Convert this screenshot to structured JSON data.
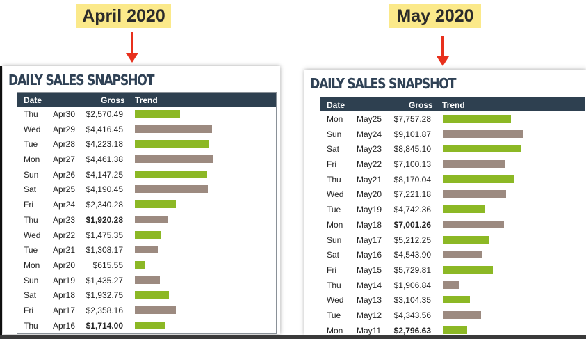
{
  "colors": {
    "green": "#8cb825",
    "taupe": "#9c8a80",
    "header": "#2e4050"
  },
  "april": {
    "badge": "April 2020",
    "title": "DAILY SALES SNAPSHOT",
    "headers": {
      "date": "Date",
      "gross": "Gross",
      "trend": "Trend"
    },
    "rows": [
      {
        "day": "Thu",
        "date": "Apr30",
        "gross": "$2,570.49",
        "trend": 2570.49,
        "color": "green",
        "bold": false
      },
      {
        "day": "Wed",
        "date": "Apr29",
        "gross": "$4,416.45",
        "trend": 4416.45,
        "color": "taupe",
        "bold": false
      },
      {
        "day": "Tue",
        "date": "Apr28",
        "gross": "$4,223.18",
        "trend": 4223.18,
        "color": "green",
        "bold": false
      },
      {
        "day": "Mon",
        "date": "Apr27",
        "gross": "$4,461.38",
        "trend": 4461.38,
        "color": "taupe",
        "bold": false
      },
      {
        "day": "Sun",
        "date": "Apr26",
        "gross": "$4,147.25",
        "trend": 4147.25,
        "color": "green",
        "bold": false
      },
      {
        "day": "Sat",
        "date": "Apr25",
        "gross": "$4,190.45",
        "trend": 4190.45,
        "color": "taupe",
        "bold": false
      },
      {
        "day": "Fri",
        "date": "Apr24",
        "gross": "$2,340.28",
        "trend": 2340.28,
        "color": "green",
        "bold": false
      },
      {
        "day": "Thu",
        "date": "Apr23",
        "gross": "$1,920.28",
        "trend": 1920.28,
        "color": "taupe",
        "bold": true
      },
      {
        "day": "Wed",
        "date": "Apr22",
        "gross": "$1,475.35",
        "trend": 1475.35,
        "color": "green",
        "bold": false
      },
      {
        "day": "Tue",
        "date": "Apr21",
        "gross": "$1,308.17",
        "trend": 1308.17,
        "color": "taupe",
        "bold": false
      },
      {
        "day": "Mon",
        "date": "Apr20",
        "gross": "$615.55",
        "trend": 615.55,
        "color": "green",
        "bold": false
      },
      {
        "day": "Sun",
        "date": "Apr19",
        "gross": "$1,435.27",
        "trend": 1435.27,
        "color": "taupe",
        "bold": false
      },
      {
        "day": "Sat",
        "date": "Apr18",
        "gross": "$1,932.75",
        "trend": 1932.75,
        "color": "green",
        "bold": false
      },
      {
        "day": "Fri",
        "date": "Apr17",
        "gross": "$2,358.16",
        "trend": 2358.16,
        "color": "taupe",
        "bold": false
      },
      {
        "day": "Thu",
        "date": "Apr16",
        "gross": "$1,714.00",
        "trend": 1714.0,
        "color": "green",
        "bold": true
      }
    ]
  },
  "may": {
    "badge": "May 2020",
    "title": "DAILY SALES SNAPSHOT",
    "headers": {
      "date": "Date",
      "gross": "Gross",
      "trend": "Trend"
    },
    "rows": [
      {
        "day": "Mon",
        "date": "May25",
        "gross": "$7,757.28",
        "trend": 7757.28,
        "color": "green",
        "bold": false
      },
      {
        "day": "Sun",
        "date": "May24",
        "gross": "$9,101.87",
        "trend": 9101.87,
        "color": "taupe",
        "bold": false
      },
      {
        "day": "Sat",
        "date": "May23",
        "gross": "$8,845.10",
        "trend": 8845.1,
        "color": "green",
        "bold": false
      },
      {
        "day": "Fri",
        "date": "May22",
        "gross": "$7,100.13",
        "trend": 7100.13,
        "color": "taupe",
        "bold": false
      },
      {
        "day": "Thu",
        "date": "May21",
        "gross": "$8,170.04",
        "trend": 8170.04,
        "color": "green",
        "bold": false
      },
      {
        "day": "Wed",
        "date": "May20",
        "gross": "$7,221.18",
        "trend": 7221.18,
        "color": "taupe",
        "bold": false
      },
      {
        "day": "Tue",
        "date": "May19",
        "gross": "$4,742.36",
        "trend": 4742.36,
        "color": "green",
        "bold": false
      },
      {
        "day": "Mon",
        "date": "May18",
        "gross": "$7,001.26",
        "trend": 7001.26,
        "color": "taupe",
        "bold": true
      },
      {
        "day": "Sun",
        "date": "May17",
        "gross": "$5,212.25",
        "trend": 5212.25,
        "color": "green",
        "bold": false
      },
      {
        "day": "Sat",
        "date": "May16",
        "gross": "$4,543.90",
        "trend": 4543.9,
        "color": "taupe",
        "bold": false
      },
      {
        "day": "Fri",
        "date": "May15",
        "gross": "$5,729.81",
        "trend": 5729.81,
        "color": "green",
        "bold": false
      },
      {
        "day": "Thu",
        "date": "May14",
        "gross": "$1,906.84",
        "trend": 1906.84,
        "color": "taupe",
        "bold": false
      },
      {
        "day": "Wed",
        "date": "May13",
        "gross": "$3,104.35",
        "trend": 3104.35,
        "color": "green",
        "bold": false
      },
      {
        "day": "Tue",
        "date": "May12",
        "gross": "$4,343.56",
        "trend": 4343.56,
        "color": "taupe",
        "bold": false
      },
      {
        "day": "Mon",
        "date": "May11",
        "gross": "$2,796.63",
        "trend": 2796.63,
        "color": "green",
        "bold": true
      }
    ]
  }
}
